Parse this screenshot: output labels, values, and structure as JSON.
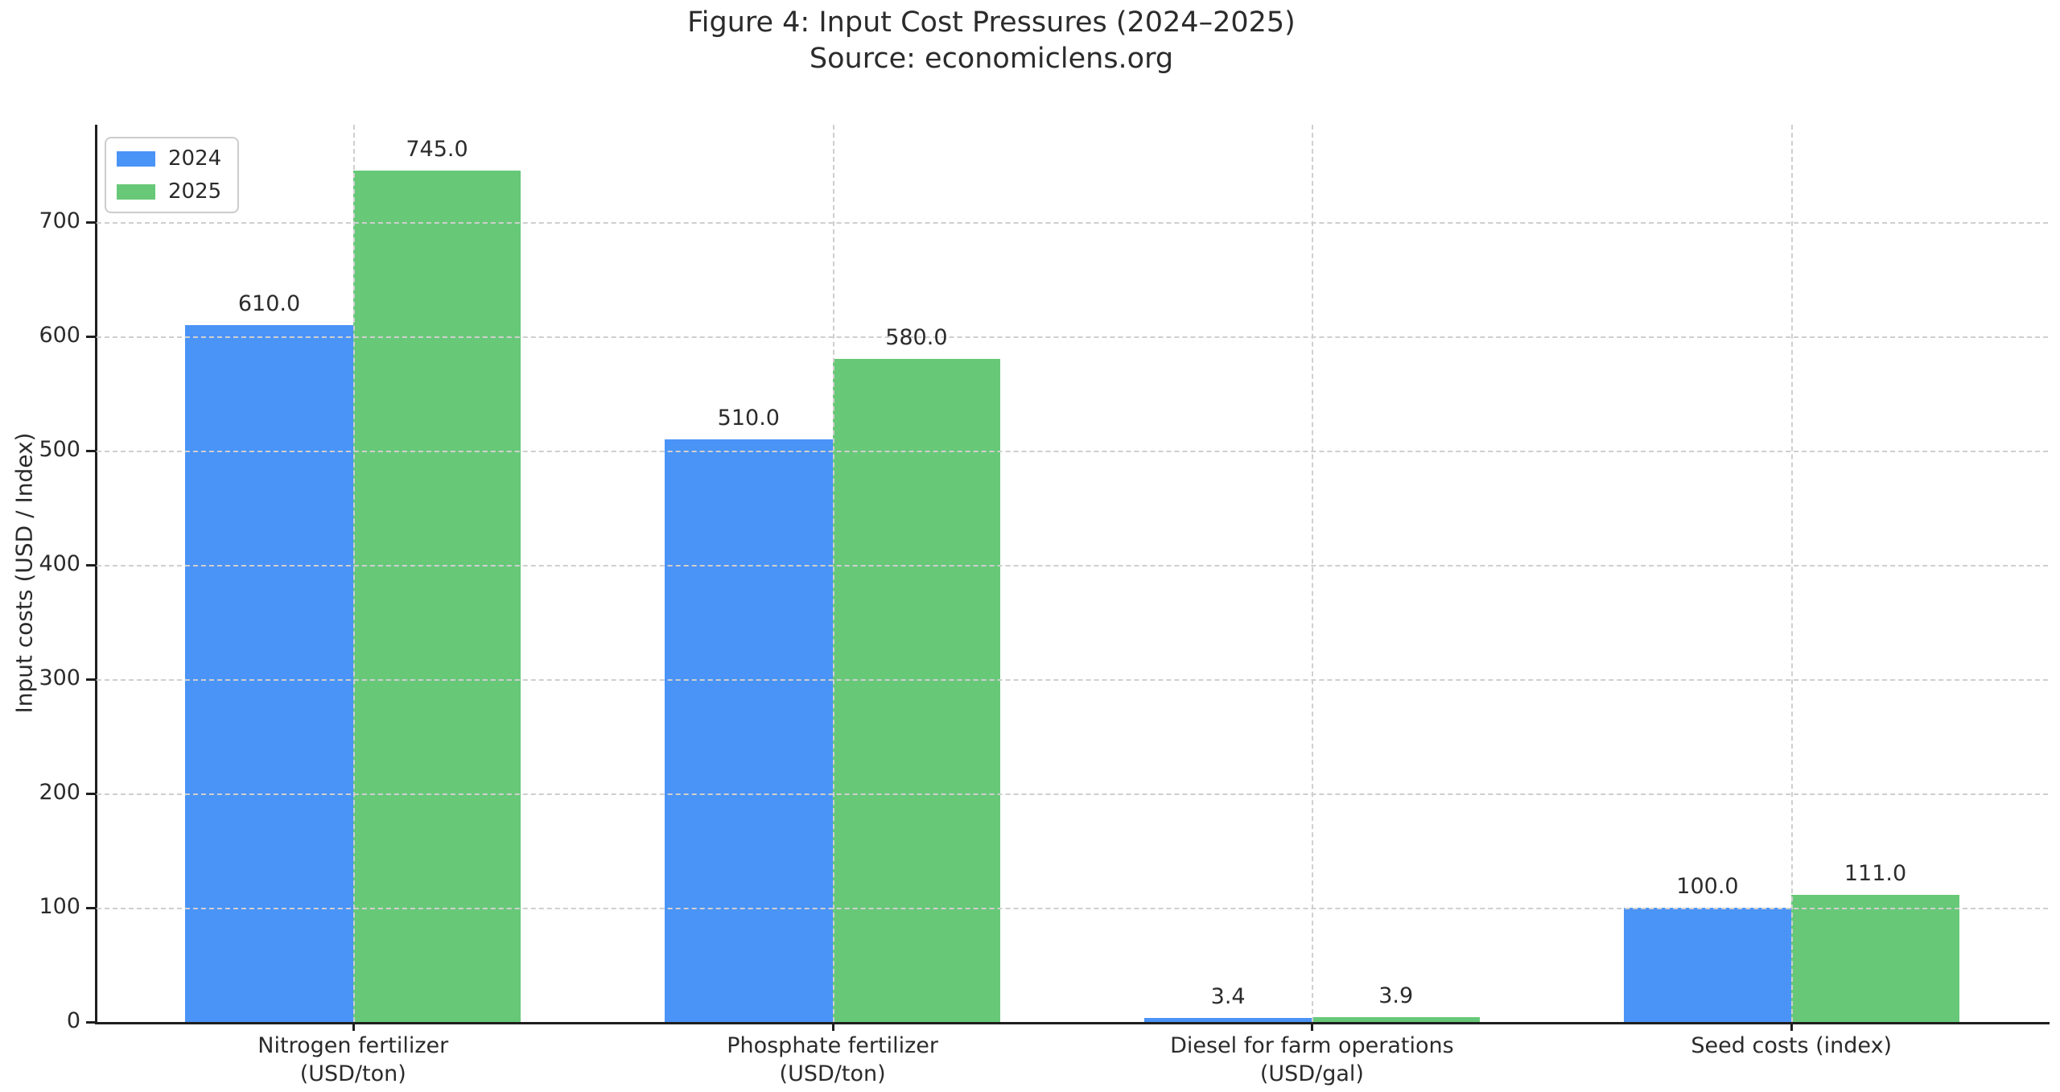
{
  "chart_data": {
    "type": "bar",
    "title": "Figure 4: Input Cost Pressures (2024–2025)",
    "subtitle": "Source: economiclens.org",
    "ylabel": "Input costs (USD / Index)",
    "xlabel": "",
    "categories": [
      [
        "Nitrogen fertilizer",
        "(USD/ton)"
      ],
      [
        "Phosphate fertilizer",
        "(USD/ton)"
      ],
      [
        "Diesel for farm operations",
        "(USD/gal)"
      ],
      [
        "Seed costs (index)"
      ]
    ],
    "series": [
      {
        "name": "2024",
        "color": "#4a93f7",
        "values": [
          610.0,
          510.0,
          3.4,
          100.0
        ],
        "labels": [
          "610.0",
          "510.0",
          "3.4",
          "100.0"
        ]
      },
      {
        "name": "2025",
        "color": "#67c878",
        "values": [
          745.0,
          580.0,
          3.9,
          111.0
        ],
        "labels": [
          "745.0",
          "580.0",
          "3.9",
          "111.0"
        ]
      }
    ],
    "yticks": [
      0,
      100,
      200,
      300,
      400,
      500,
      600,
      700
    ],
    "ylim": [
      0,
      785
    ],
    "grid": true,
    "grid_style": "dashed",
    "grid_color": "#cfcfcf",
    "legend_position": "top-left",
    "background_color": "#ffffff",
    "text_color": "#2b2b2b"
  }
}
